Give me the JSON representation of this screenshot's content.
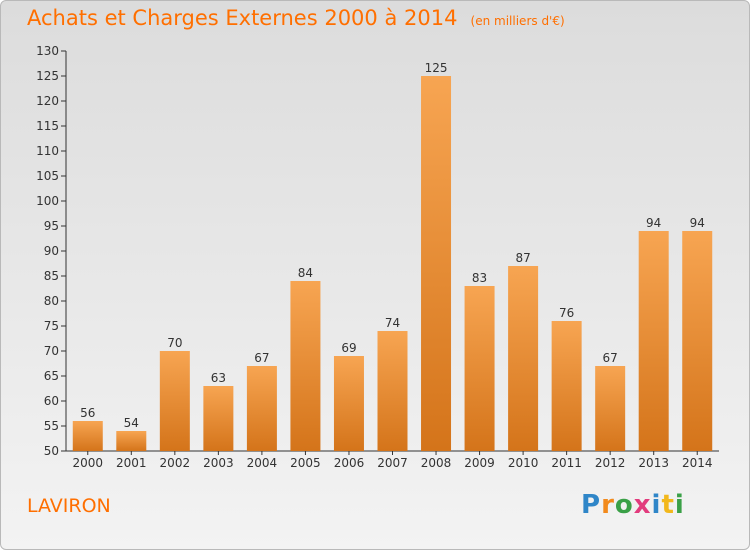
{
  "header": {
    "title": "Achats et Charges Externes 2000 à 2014",
    "unit": "(en milliers d'€)"
  },
  "footer": {
    "place": "LAVIRON"
  },
  "brand": {
    "letters": [
      "P",
      "r",
      "o",
      "x",
      "i",
      "t",
      "i"
    ],
    "colors": [
      "#2f86c8",
      "#f28a1c",
      "#3aa047",
      "#e23b7d",
      "#2f86c8",
      "#f2b81c",
      "#3aa047"
    ]
  },
  "colors": {
    "bar_light": "#f7a552",
    "bar_dark": "#d4741a",
    "accent": "#ff6f00"
  },
  "chart_data": {
    "type": "bar",
    "title": "Achats et Charges Externes 2000 à 2014",
    "subtitle": "(en milliers d'€)",
    "categories": [
      "2000",
      "2001",
      "2002",
      "2003",
      "2004",
      "2005",
      "2006",
      "2007",
      "2008",
      "2009",
      "2010",
      "2011",
      "2012",
      "2013",
      "2014"
    ],
    "values": [
      56,
      54,
      70,
      63,
      67,
      84,
      69,
      74,
      125,
      83,
      87,
      76,
      67,
      94,
      94
    ],
    "ylim": [
      50,
      130
    ],
    "yticks": [
      50,
      55,
      60,
      65,
      70,
      75,
      80,
      85,
      90,
      95,
      100,
      105,
      110,
      115,
      120,
      125,
      130
    ],
    "grid": false,
    "legend": "none"
  }
}
